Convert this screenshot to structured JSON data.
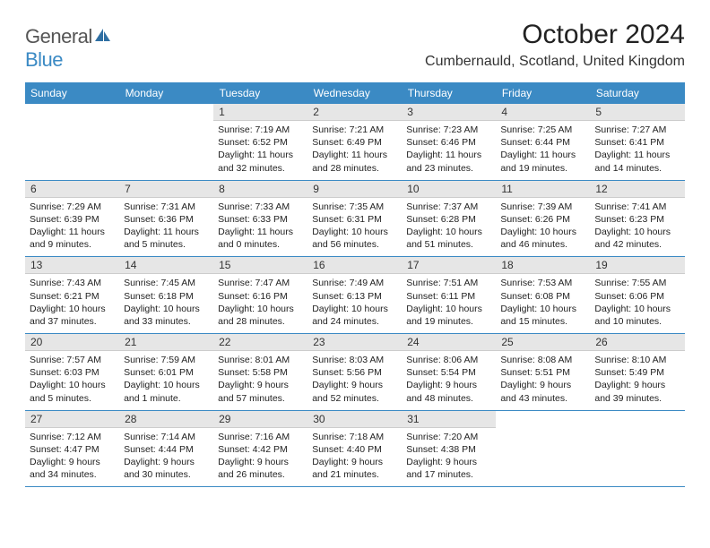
{
  "logo": {
    "part1": "General",
    "part2": "Blue",
    "iconColor": "#2f6fa3"
  },
  "title": "October 2024",
  "location": "Cumbernauld, Scotland, United Kingdom",
  "dayHeaders": [
    "Sunday",
    "Monday",
    "Tuesday",
    "Wednesday",
    "Thursday",
    "Friday",
    "Saturday"
  ],
  "colors": {
    "headerBg": "#3b8ac4",
    "dayNumBg": "#e6e6e6",
    "border": "#3b8ac4"
  },
  "weeks": [
    [
      {
        "n": "",
        "sr": "",
        "ss": "",
        "dl": ""
      },
      {
        "n": "",
        "sr": "",
        "ss": "",
        "dl": ""
      },
      {
        "n": "1",
        "sr": "Sunrise: 7:19 AM",
        "ss": "Sunset: 6:52 PM",
        "dl": "Daylight: 11 hours and 32 minutes."
      },
      {
        "n": "2",
        "sr": "Sunrise: 7:21 AM",
        "ss": "Sunset: 6:49 PM",
        "dl": "Daylight: 11 hours and 28 minutes."
      },
      {
        "n": "3",
        "sr": "Sunrise: 7:23 AM",
        "ss": "Sunset: 6:46 PM",
        "dl": "Daylight: 11 hours and 23 minutes."
      },
      {
        "n": "4",
        "sr": "Sunrise: 7:25 AM",
        "ss": "Sunset: 6:44 PM",
        "dl": "Daylight: 11 hours and 19 minutes."
      },
      {
        "n": "5",
        "sr": "Sunrise: 7:27 AM",
        "ss": "Sunset: 6:41 PM",
        "dl": "Daylight: 11 hours and 14 minutes."
      }
    ],
    [
      {
        "n": "6",
        "sr": "Sunrise: 7:29 AM",
        "ss": "Sunset: 6:39 PM",
        "dl": "Daylight: 11 hours and 9 minutes."
      },
      {
        "n": "7",
        "sr": "Sunrise: 7:31 AM",
        "ss": "Sunset: 6:36 PM",
        "dl": "Daylight: 11 hours and 5 minutes."
      },
      {
        "n": "8",
        "sr": "Sunrise: 7:33 AM",
        "ss": "Sunset: 6:33 PM",
        "dl": "Daylight: 11 hours and 0 minutes."
      },
      {
        "n": "9",
        "sr": "Sunrise: 7:35 AM",
        "ss": "Sunset: 6:31 PM",
        "dl": "Daylight: 10 hours and 56 minutes."
      },
      {
        "n": "10",
        "sr": "Sunrise: 7:37 AM",
        "ss": "Sunset: 6:28 PM",
        "dl": "Daylight: 10 hours and 51 minutes."
      },
      {
        "n": "11",
        "sr": "Sunrise: 7:39 AM",
        "ss": "Sunset: 6:26 PM",
        "dl": "Daylight: 10 hours and 46 minutes."
      },
      {
        "n": "12",
        "sr": "Sunrise: 7:41 AM",
        "ss": "Sunset: 6:23 PM",
        "dl": "Daylight: 10 hours and 42 minutes."
      }
    ],
    [
      {
        "n": "13",
        "sr": "Sunrise: 7:43 AM",
        "ss": "Sunset: 6:21 PM",
        "dl": "Daylight: 10 hours and 37 minutes."
      },
      {
        "n": "14",
        "sr": "Sunrise: 7:45 AM",
        "ss": "Sunset: 6:18 PM",
        "dl": "Daylight: 10 hours and 33 minutes."
      },
      {
        "n": "15",
        "sr": "Sunrise: 7:47 AM",
        "ss": "Sunset: 6:16 PM",
        "dl": "Daylight: 10 hours and 28 minutes."
      },
      {
        "n": "16",
        "sr": "Sunrise: 7:49 AM",
        "ss": "Sunset: 6:13 PM",
        "dl": "Daylight: 10 hours and 24 minutes."
      },
      {
        "n": "17",
        "sr": "Sunrise: 7:51 AM",
        "ss": "Sunset: 6:11 PM",
        "dl": "Daylight: 10 hours and 19 minutes."
      },
      {
        "n": "18",
        "sr": "Sunrise: 7:53 AM",
        "ss": "Sunset: 6:08 PM",
        "dl": "Daylight: 10 hours and 15 minutes."
      },
      {
        "n": "19",
        "sr": "Sunrise: 7:55 AM",
        "ss": "Sunset: 6:06 PM",
        "dl": "Daylight: 10 hours and 10 minutes."
      }
    ],
    [
      {
        "n": "20",
        "sr": "Sunrise: 7:57 AM",
        "ss": "Sunset: 6:03 PM",
        "dl": "Daylight: 10 hours and 5 minutes."
      },
      {
        "n": "21",
        "sr": "Sunrise: 7:59 AM",
        "ss": "Sunset: 6:01 PM",
        "dl": "Daylight: 10 hours and 1 minute."
      },
      {
        "n": "22",
        "sr": "Sunrise: 8:01 AM",
        "ss": "Sunset: 5:58 PM",
        "dl": "Daylight: 9 hours and 57 minutes."
      },
      {
        "n": "23",
        "sr": "Sunrise: 8:03 AM",
        "ss": "Sunset: 5:56 PM",
        "dl": "Daylight: 9 hours and 52 minutes."
      },
      {
        "n": "24",
        "sr": "Sunrise: 8:06 AM",
        "ss": "Sunset: 5:54 PM",
        "dl": "Daylight: 9 hours and 48 minutes."
      },
      {
        "n": "25",
        "sr": "Sunrise: 8:08 AM",
        "ss": "Sunset: 5:51 PM",
        "dl": "Daylight: 9 hours and 43 minutes."
      },
      {
        "n": "26",
        "sr": "Sunrise: 8:10 AM",
        "ss": "Sunset: 5:49 PM",
        "dl": "Daylight: 9 hours and 39 minutes."
      }
    ],
    [
      {
        "n": "27",
        "sr": "Sunrise: 7:12 AM",
        "ss": "Sunset: 4:47 PM",
        "dl": "Daylight: 9 hours and 34 minutes."
      },
      {
        "n": "28",
        "sr": "Sunrise: 7:14 AM",
        "ss": "Sunset: 4:44 PM",
        "dl": "Daylight: 9 hours and 30 minutes."
      },
      {
        "n": "29",
        "sr": "Sunrise: 7:16 AM",
        "ss": "Sunset: 4:42 PM",
        "dl": "Daylight: 9 hours and 26 minutes."
      },
      {
        "n": "30",
        "sr": "Sunrise: 7:18 AM",
        "ss": "Sunset: 4:40 PM",
        "dl": "Daylight: 9 hours and 21 minutes."
      },
      {
        "n": "31",
        "sr": "Sunrise: 7:20 AM",
        "ss": "Sunset: 4:38 PM",
        "dl": "Daylight: 9 hours and 17 minutes."
      },
      {
        "n": "",
        "sr": "",
        "ss": "",
        "dl": ""
      },
      {
        "n": "",
        "sr": "",
        "ss": "",
        "dl": ""
      }
    ]
  ]
}
